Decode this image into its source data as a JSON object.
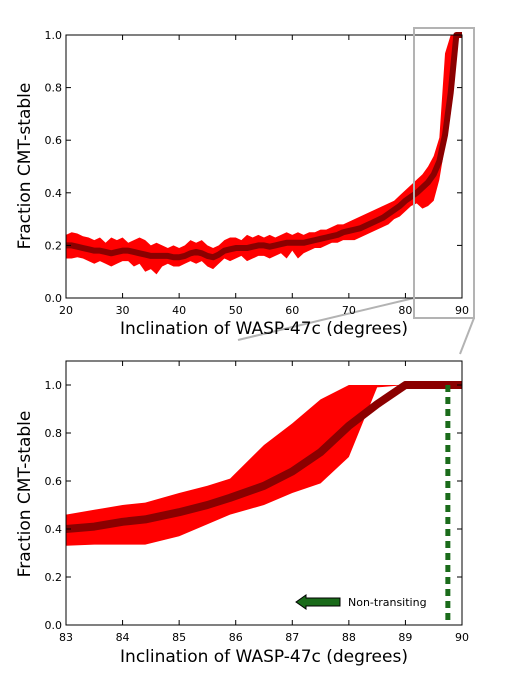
{
  "colors": {
    "band": "#ff0000",
    "median": "#8b0000",
    "zoom_box": "#b3b3b3",
    "transit_line": "#1a6b1a",
    "arrow": "#1a6b1a"
  },
  "chart_data": [
    {
      "type": "area",
      "xlabel": "Inclination of WASP-47c (degrees)",
      "ylabel": "Fraction CMT-stable",
      "xlim": [
        20,
        90
      ],
      "ylim": [
        0,
        1
      ],
      "xticks": [
        "20",
        "30",
        "40",
        "50",
        "60",
        "70",
        "80",
        "90"
      ],
      "yticks": [
        "0.0",
        "0.2",
        "0.4",
        "0.6",
        "0.8",
        "1.0"
      ],
      "grid": false,
      "series": [
        {
          "x": [
            20,
            21,
            22,
            23,
            24,
            25,
            26,
            27,
            28,
            29,
            30,
            31,
            32,
            33,
            34,
            35,
            36,
            37,
            38,
            39,
            40,
            41,
            42,
            43,
            44,
            45,
            46,
            47,
            48,
            49,
            50,
            51,
            52,
            53,
            54,
            55,
            56,
            57,
            58,
            59,
            60,
            61,
            62,
            63,
            64,
            65,
            66,
            67,
            68,
            69,
            70,
            71,
            72,
            73,
            74,
            75,
            76,
            77,
            78,
            79,
            80,
            81,
            82,
            83,
            84,
            85,
            86,
            87,
            88,
            89,
            90
          ],
          "median": [
            0.2,
            0.2,
            0.195,
            0.19,
            0.185,
            0.18,
            0.18,
            0.175,
            0.17,
            0.175,
            0.18,
            0.18,
            0.175,
            0.17,
            0.165,
            0.16,
            0.16,
            0.16,
            0.16,
            0.155,
            0.155,
            0.16,
            0.17,
            0.175,
            0.17,
            0.16,
            0.155,
            0.165,
            0.18,
            0.185,
            0.19,
            0.19,
            0.19,
            0.195,
            0.2,
            0.2,
            0.195,
            0.2,
            0.205,
            0.21,
            0.21,
            0.21,
            0.21,
            0.215,
            0.22,
            0.225,
            0.23,
            0.235,
            0.24,
            0.25,
            0.255,
            0.26,
            0.265,
            0.275,
            0.285,
            0.295,
            0.305,
            0.32,
            0.335,
            0.35,
            0.37,
            0.385,
            0.4,
            0.42,
            0.44,
            0.47,
            0.52,
            0.62,
            0.78,
            1.0,
            1.0
          ],
          "lower": [
            0.15,
            0.15,
            0.155,
            0.15,
            0.14,
            0.13,
            0.14,
            0.13,
            0.12,
            0.13,
            0.14,
            0.14,
            0.12,
            0.13,
            0.1,
            0.11,
            0.09,
            0.12,
            0.13,
            0.12,
            0.12,
            0.13,
            0.14,
            0.13,
            0.14,
            0.12,
            0.11,
            0.13,
            0.15,
            0.14,
            0.15,
            0.16,
            0.14,
            0.15,
            0.16,
            0.16,
            0.15,
            0.16,
            0.17,
            0.15,
            0.18,
            0.15,
            0.17,
            0.18,
            0.19,
            0.19,
            0.2,
            0.21,
            0.21,
            0.22,
            0.22,
            0.22,
            0.23,
            0.24,
            0.25,
            0.26,
            0.27,
            0.28,
            0.3,
            0.31,
            0.33,
            0.35,
            0.36,
            0.34,
            0.35,
            0.37,
            0.45,
            0.58,
            0.7,
            1.0,
            1.0
          ],
          "upper": [
            0.24,
            0.25,
            0.245,
            0.235,
            0.23,
            0.22,
            0.23,
            0.21,
            0.23,
            0.22,
            0.23,
            0.21,
            0.22,
            0.23,
            0.22,
            0.2,
            0.21,
            0.2,
            0.19,
            0.2,
            0.19,
            0.2,
            0.22,
            0.21,
            0.22,
            0.2,
            0.19,
            0.2,
            0.22,
            0.23,
            0.23,
            0.22,
            0.24,
            0.23,
            0.24,
            0.23,
            0.24,
            0.23,
            0.24,
            0.25,
            0.24,
            0.25,
            0.24,
            0.25,
            0.25,
            0.26,
            0.26,
            0.27,
            0.28,
            0.28,
            0.29,
            0.3,
            0.31,
            0.32,
            0.33,
            0.34,
            0.35,
            0.36,
            0.37,
            0.39,
            0.41,
            0.43,
            0.45,
            0.47,
            0.5,
            0.54,
            0.61,
            0.93,
            1.0,
            1.0,
            1.0
          ]
        }
      ],
      "zoom_box": {
        "xlim": [
          83,
          90
        ],
        "ylim": [
          0,
          1
        ]
      }
    },
    {
      "type": "area",
      "xlabel": "Inclination of WASP-47c (degrees)",
      "ylabel": "Fraction CMT-stable",
      "xlim": [
        83,
        90
      ],
      "ylim": [
        0,
        1.1
      ],
      "xticks": [
        "83",
        "84",
        "85",
        "86",
        "87",
        "88",
        "89",
        "90"
      ],
      "yticks": [
        "0.0",
        "0.2",
        "0.4",
        "0.6",
        "0.8",
        "1.0"
      ],
      "grid": false,
      "series": [
        {
          "x": [
            83,
            83.5,
            84,
            84.4,
            85,
            85.5,
            85.9,
            86.5,
            87,
            87.5,
            88,
            88.5,
            89,
            89.5,
            90
          ],
          "median": [
            0.4,
            0.41,
            0.43,
            0.44,
            0.47,
            0.5,
            0.53,
            0.58,
            0.64,
            0.72,
            0.83,
            0.92,
            1.0,
            1.0,
            1.0
          ],
          "lower": [
            0.33,
            0.335,
            0.335,
            0.335,
            0.37,
            0.42,
            0.46,
            0.5,
            0.55,
            0.59,
            0.7,
            0.99,
            1.0,
            1.0,
            1.0
          ],
          "upper": [
            0.46,
            0.48,
            0.5,
            0.51,
            0.55,
            0.58,
            0.61,
            0.75,
            0.84,
            0.94,
            1.0,
            1.0,
            1.0,
            1.0,
            1.0
          ]
        }
      ],
      "transit_limit_x": 89.75,
      "annotation": "Non-transiting"
    }
  ]
}
